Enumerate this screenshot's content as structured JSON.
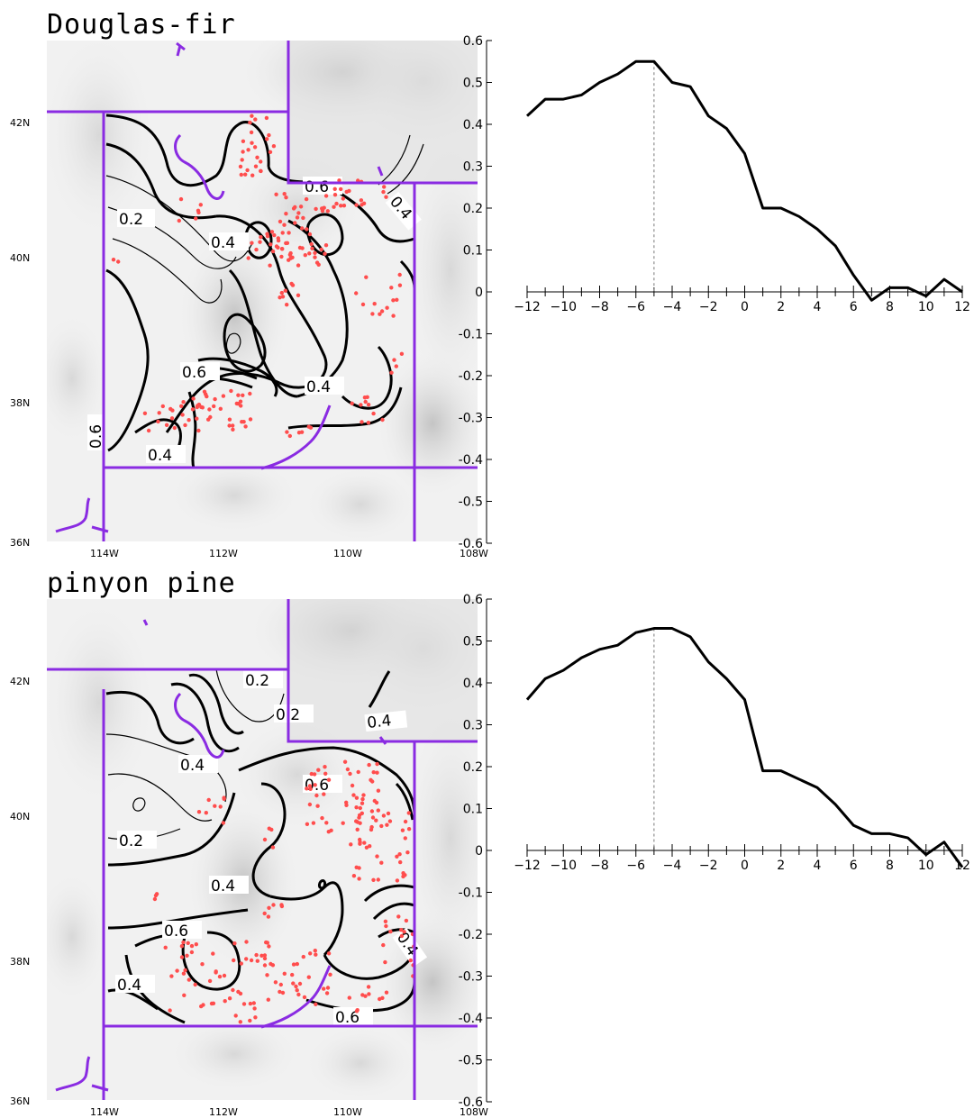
{
  "colors": {
    "boundary": "#8a2be2",
    "lake": "#8a2be2",
    "points": "#ff4d4d",
    "contour": "#000000",
    "terrain_light": "#f2f2f2",
    "terrain_dark": "#d2d2d2"
  },
  "chart_data": [
    {
      "type": "map",
      "title": "Douglas-fir",
      "lon_ticks": [
        "114W",
        "112W",
        "110W",
        "108W"
      ],
      "lat_ticks": [
        "42N",
        "40N",
        "38N",
        "36N"
      ],
      "contour_labels": [
        "0.6",
        "0.2",
        "0.4",
        "0.4",
        "0.6",
        "0.4",
        "0.6",
        "0.4"
      ]
    },
    {
      "type": "line",
      "x": [
        -12,
        -11,
        -10,
        -9,
        -8,
        -7,
        -6,
        -5,
        -4,
        -3,
        -2,
        -1,
        0,
        1,
        2,
        3,
        4,
        5,
        6,
        7,
        8,
        9,
        10,
        11,
        12
      ],
      "y": [
        0.42,
        0.46,
        0.46,
        0.47,
        0.5,
        0.52,
        0.55,
        0.55,
        0.5,
        0.49,
        0.42,
        0.39,
        0.33,
        0.2,
        0.2,
        0.18,
        0.15,
        0.11,
        0.04,
        -0.02,
        0.01,
        0.01,
        -0.01,
        0.03,
        0.0
      ],
      "xlim": [
        -12,
        12
      ],
      "ylim": [
        -0.6,
        0.6
      ],
      "x_ticks": [
        "-12",
        "-10",
        "-8",
        "-6",
        "-4",
        "-2",
        "0",
        "2",
        "4",
        "6",
        "8",
        "10",
        "12"
      ],
      "y_ticks": [
        "0.6",
        "0.5",
        "0.4",
        "0.3",
        "0.2",
        "0.1",
        "0",
        "-0.1",
        "-0.2",
        "-0.3",
        "-0.4",
        "-0.5",
        "-0.6"
      ],
      "reference_line_x": -5
    },
    {
      "type": "map",
      "title": "pinyon pine",
      "lon_ticks": [
        "114W",
        "112W",
        "110W",
        "108W"
      ],
      "lat_ticks": [
        "42N",
        "40N",
        "38N",
        "36N"
      ],
      "contour_labels": [
        "0.2",
        "0.2",
        "0.4",
        "0.4",
        "0.2",
        "0.6",
        "0.4",
        "0.6",
        "0.4",
        "0.4",
        "0.6"
      ]
    },
    {
      "type": "line",
      "x": [
        -12,
        -11,
        -10,
        -9,
        -8,
        -7,
        -6,
        -5,
        -4,
        -3,
        -2,
        -1,
        0,
        1,
        2,
        3,
        4,
        5,
        6,
        7,
        8,
        9,
        10,
        11,
        12
      ],
      "y": [
        0.36,
        0.41,
        0.43,
        0.46,
        0.48,
        0.49,
        0.52,
        0.53,
        0.53,
        0.51,
        0.45,
        0.41,
        0.36,
        0.19,
        0.19,
        0.17,
        0.15,
        0.11,
        0.06,
        0.04,
        0.04,
        0.03,
        -0.01,
        0.02,
        -0.04
      ],
      "xlim": [
        -12,
        12
      ],
      "ylim": [
        -0.6,
        0.6
      ],
      "x_ticks": [
        "-12",
        "-10",
        "-8",
        "-6",
        "-4",
        "-2",
        "0",
        "2",
        "4",
        "6",
        "8",
        "10",
        "12"
      ],
      "y_ticks": [
        "0.6",
        "0.5",
        "0.4",
        "0.3",
        "0.2",
        "0.1",
        "0",
        "-0.1",
        "-0.2",
        "-0.3",
        "-0.4",
        "-0.5",
        "-0.6"
      ],
      "reference_line_x": -5
    }
  ]
}
